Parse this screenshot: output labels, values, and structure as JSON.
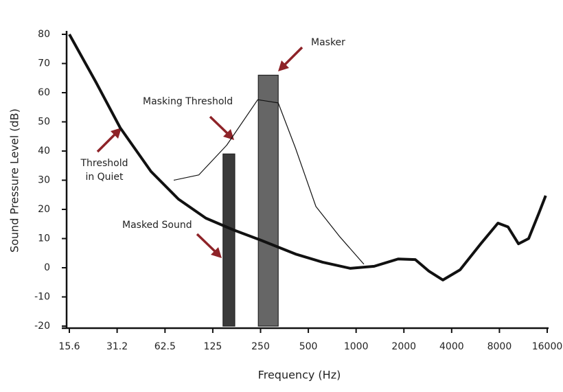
{
  "chart_data": {
    "type": "line",
    "xlabel": "Frequency (Hz)",
    "ylabel": "Sound Pressure Level (dB)",
    "xscale": "log",
    "xlim": [
      15.6,
      16000
    ],
    "ylim": [
      -20,
      80
    ],
    "xticks": [
      15.6,
      31.2,
      62.5,
      125,
      250,
      500,
      1000,
      2000,
      4000,
      8000,
      16000
    ],
    "yticks": [
      -20,
      -10,
      0,
      10,
      20,
      30,
      40,
      50,
      60,
      70,
      80
    ],
    "series": [
      {
        "color": "#111111",
        "width": 4,
        "x": [
          15.6,
          23,
          32.6,
          51,
          76,
          113,
          168,
          252,
          415,
          615,
          917,
          1300,
          1840,
          2360,
          2880,
          3520,
          4520,
          6100,
          7830,
          9060,
          10550,
          12220,
          14200,
          15650
        ],
        "values": [
          80,
          63.5,
          48,
          33,
          23.5,
          17,
          13,
          9.4,
          4.7,
          1.9,
          -0.2,
          0.5,
          3,
          2.8,
          -1.2,
          -4.2,
          -0.7,
          8.2,
          15.3,
          14,
          8.2,
          10,
          18.8,
          24.7
        ]
      },
      {
        "color": "#111111",
        "width": 1.2,
        "x": [
          71,
          102,
          153,
          240,
          323,
          415,
          558,
          790,
          1120
        ],
        "values": [
          30,
          31.8,
          42,
          57.6,
          56.5,
          41,
          21,
          10.6,
          1.2
        ]
      }
    ],
    "bars": {
      "x_start": [
        145,
        242
      ],
      "x_end": [
        172,
        323
      ],
      "values": [
        39,
        66
      ],
      "colors": [
        "#3a3a3a",
        "#666666"
      ]
    },
    "annotations": {
      "masker": "Masker",
      "masking_threshold": "Masking Threshold",
      "threshold_in_quiet": [
        "Threshold",
        "in Quiet"
      ],
      "masked_sound": "Masked Sound"
    }
  }
}
